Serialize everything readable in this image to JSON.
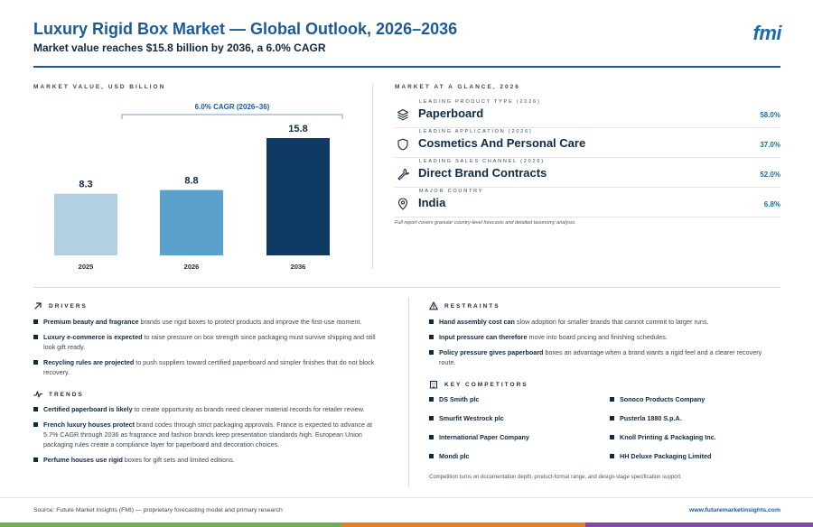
{
  "header": {
    "title": "Luxury Rigid Box Market — Global Outlook, 2026–2036",
    "subtitle": "Market value reaches $15.8 billion by 2036, a 6.0% CAGR",
    "logo": "fmi"
  },
  "chart_section": {
    "label": "MARKET VALUE, USD BILLION"
  },
  "chart_data": {
    "type": "bar",
    "categories": [
      "2025",
      "2026",
      "2036"
    ],
    "values": [
      8.3,
      8.8,
      15.8
    ],
    "data_labels": [
      "8.3",
      "8.8",
      "15.8"
    ],
    "annotation": "6.0% CAGR (2026–36)",
    "ylim": [
      0,
      15.8
    ],
    "grid": false,
    "colors": [
      "#b3d0e3",
      "#5aa0cc",
      "#0f3a63"
    ]
  },
  "glance": {
    "label": "MARKET AT A GLANCE, 2026",
    "items": [
      {
        "caption": "LEADING PRODUCT TYPE (2026)",
        "value": "Paperboard",
        "share": "58.0%",
        "icon": "layers-icon"
      },
      {
        "caption": "LEADING APPLICATION (2026)",
        "value": "Cosmetics And Personal Care",
        "share": "37.0%",
        "icon": "shield-icon"
      },
      {
        "caption": "LEADING SALES CHANNEL (2026)",
        "value": "Direct Brand Contracts",
        "share": "52.0%",
        "icon": "wrench-icon"
      },
      {
        "caption": "MAJOR COUNTRY",
        "value": "India",
        "share": "6.8%",
        "icon": "map-pin-icon"
      }
    ],
    "note": "Full report covers granular country-level forecasts and detailed taxonomy analysis."
  },
  "drivers": {
    "title": "DRIVERS",
    "items": [
      {
        "bold": "Premium beauty and fragrance",
        "text": " brands use rigid boxes to protect products and improve the first-use moment."
      },
      {
        "bold": "Luxury e-commerce is expected",
        "text": " to raise pressure on box strength since packaging must survive shipping and still look gift ready."
      },
      {
        "bold": "Recycling rules are projected",
        "text": " to push suppliers toward certified paperboard and simpler finishes that do not block recovery."
      }
    ]
  },
  "trends": {
    "title": "TRENDS",
    "items": [
      {
        "bold": "Certified paperboard is likely",
        "text": " to create opportunity as brands need cleaner material records for retailer review."
      },
      {
        "bold": "French luxury houses protect",
        "text": " brand codes through strict packaging approvals. France is expected to advance at 5.7% CAGR through 2036 as fragrance and fashion brands keep presentation standards high. European Union packaging rules create a compliance layer for paperboard and decoration choices."
      },
      {
        "bold": "Perfume houses use rigid",
        "text": " boxes for gift sets and limited editions."
      }
    ]
  },
  "restraints": {
    "title": "RESTRAINTS",
    "items": [
      {
        "bold": "Hand assembly cost can",
        "text": " slow adoption for smaller brands that cannot commit to larger runs."
      },
      {
        "bold": "Input pressure can therefore",
        "text": " move into board pricing and finishing schedules."
      },
      {
        "bold": "Policy pressure gives paperboard",
        "text": " boxes an advantage when a brand wants a rigid feel and a clearer recovery route."
      }
    ]
  },
  "competitors": {
    "title": "KEY COMPETITORS",
    "items": [
      "DS Smith plc",
      "Sonoco Products Company",
      "Smurfit Westrock plc",
      "Pusterla 1880 S.p.A.",
      "International Paper Company",
      "Knoll Printing & Packaging Inc.",
      "Mondi plc",
      "HH Deluxe Packaging Limited"
    ],
    "note": "Competition turns on documentation depth, product-format range, and design-stage specification support."
  },
  "footer": {
    "source": "Source: Future Market Insights (FMI) — proprietary forecasting model and primary research",
    "url": "www.futuremarketinsights.com",
    "bar_colors": [
      "#6ab04c",
      "#e67e22",
      "#8e44ad"
    ]
  }
}
